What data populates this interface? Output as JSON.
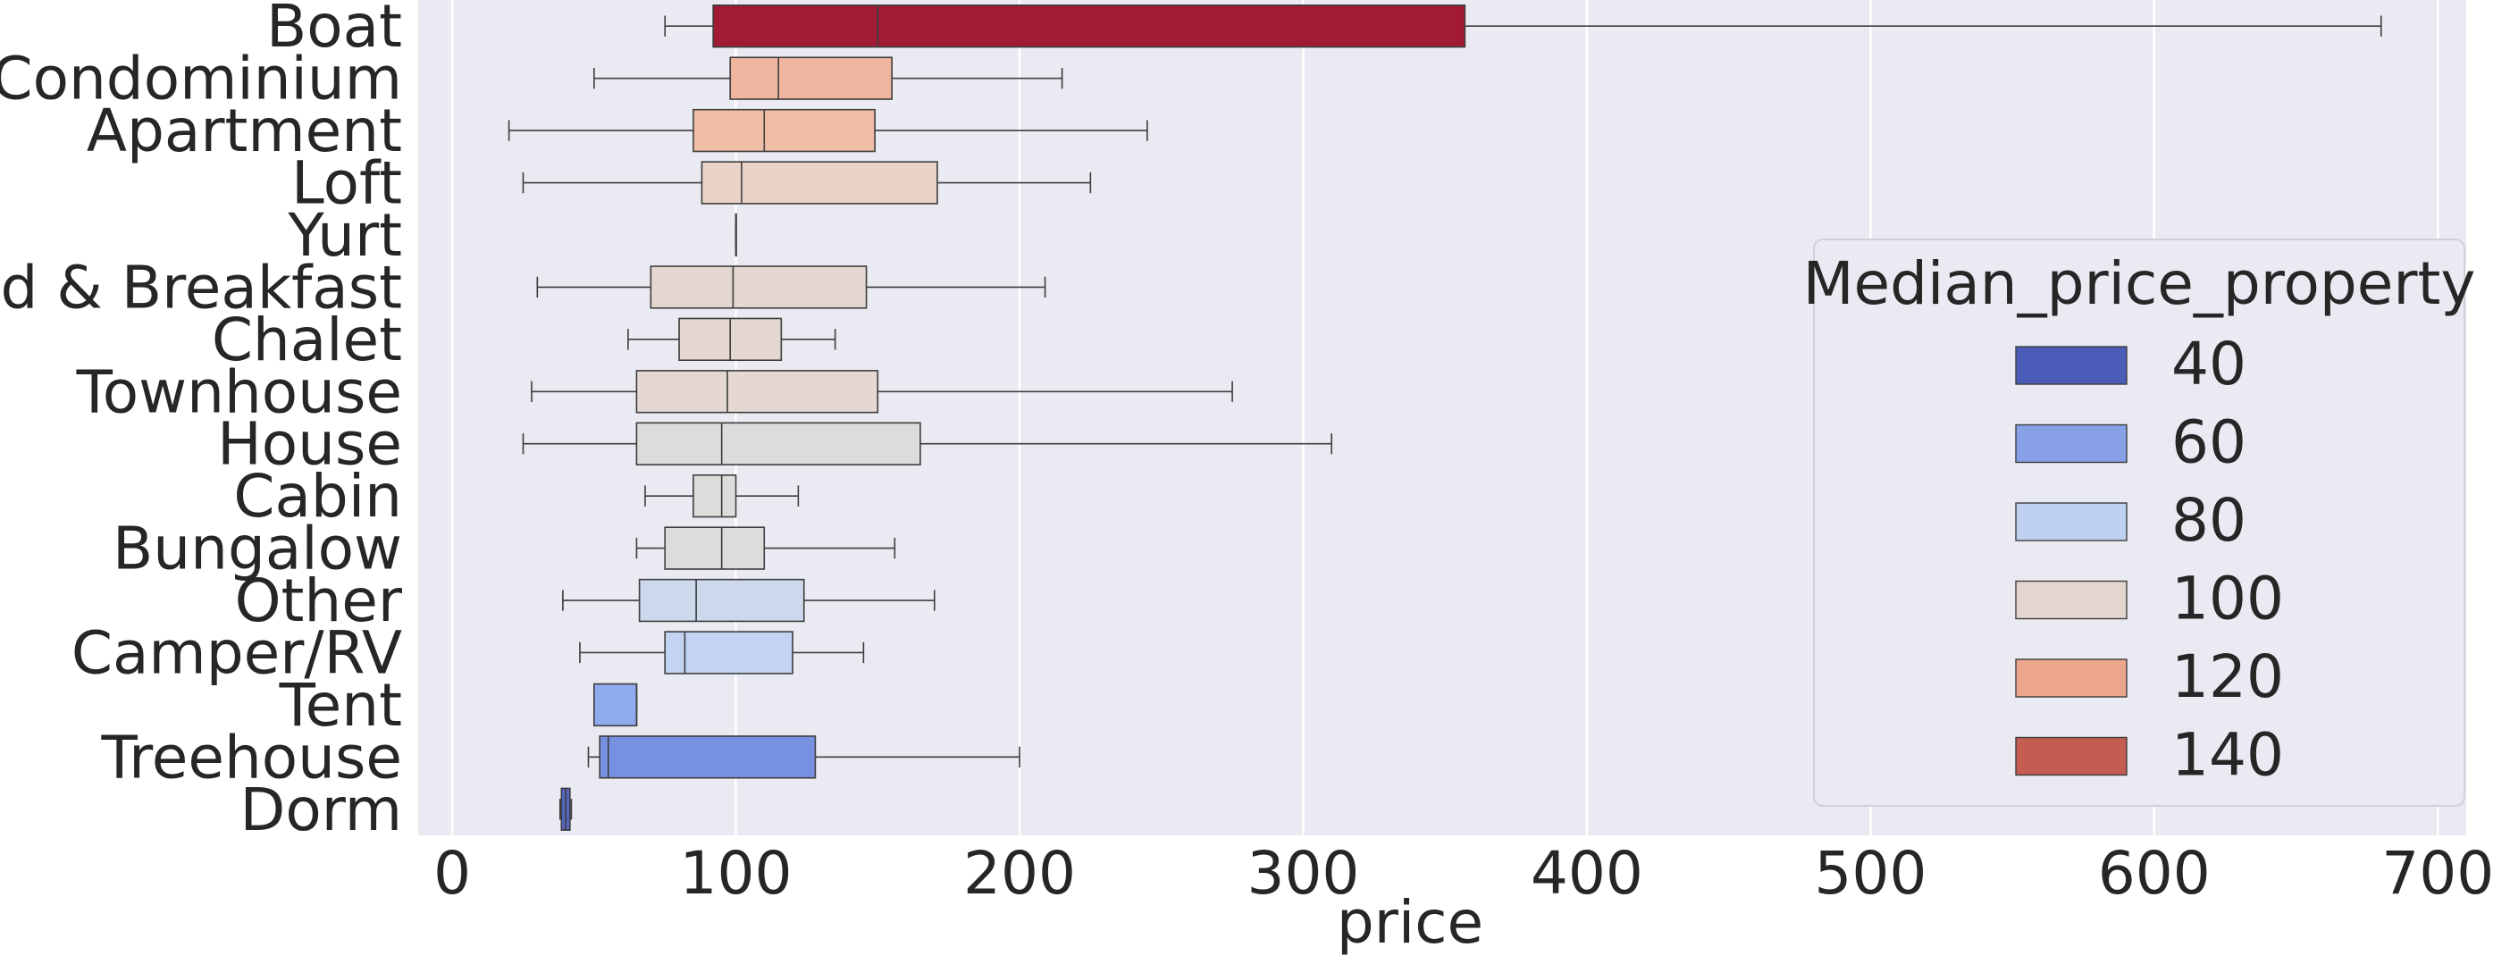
{
  "chart_data": {
    "type": "boxplot-horizontal",
    "xlabel": "price",
    "ylabel": "",
    "xlim": [
      -12,
      710
    ],
    "xticks": [
      0,
      100,
      200,
      300,
      400,
      500,
      600,
      700
    ],
    "xtick_labels": [
      "0",
      "100",
      "200",
      "300",
      "400",
      "500",
      "600",
      "700"
    ],
    "grid": true,
    "legend": {
      "title": "Median_price_property",
      "position": "right",
      "entries": [
        {
          "label": "40",
          "color": "#4a5bb8"
        },
        {
          "label": "60",
          "color": "#87a0e8"
        },
        {
          "label": "80",
          "color": "#bed1f0"
        },
        {
          "label": "100",
          "color": "#e3d6cf"
        },
        {
          "label": "120",
          "color": "#eba68c"
        },
        {
          "label": "140",
          "color": "#c45c52"
        }
      ]
    },
    "categories": [
      "Boat",
      "Condominium",
      "Apartment",
      "Loft",
      "Yurt",
      "Bed & Breakfast",
      "Chalet",
      "Townhouse",
      "House",
      "Cabin",
      "Bungalow",
      "Other",
      "Camper/RV",
      "Tent",
      "Treehouse",
      "Dorm"
    ],
    "boxes": [
      {
        "category": "Boat",
        "whislo": 75,
        "q1": 92,
        "med": 150,
        "q3": 357,
        "whishi": 680,
        "color": "#a11a36"
      },
      {
        "category": "Condominium",
        "whislo": 50,
        "q1": 98,
        "med": 115,
        "q3": 155,
        "whishi": 215,
        "color": "#f0b59e"
      },
      {
        "category": "Apartment",
        "whislo": 20,
        "q1": 85,
        "med": 110,
        "q3": 149,
        "whishi": 245,
        "color": "#f0bda6"
      },
      {
        "category": "Loft",
        "whislo": 25,
        "q1": 88,
        "med": 102,
        "q3": 171,
        "whishi": 225,
        "color": "#e9d3c8"
      },
      {
        "category": "Yurt",
        "whislo": 100,
        "q1": 100,
        "med": 100,
        "q3": 100,
        "whishi": 100,
        "color": "#e3d6cf"
      },
      {
        "category": "Bed & Breakfast",
        "whislo": 30,
        "q1": 70,
        "med": 99,
        "q3": 146,
        "whishi": 209,
        "color": "#e4d7d0"
      },
      {
        "category": "Chalet",
        "whislo": 62,
        "q1": 80,
        "med": 98,
        "q3": 116,
        "whishi": 135,
        "color": "#e4d7d0"
      },
      {
        "category": "Townhouse",
        "whislo": 28,
        "q1": 65,
        "med": 97,
        "q3": 150,
        "whishi": 275,
        "color": "#e5d8d2"
      },
      {
        "category": "House",
        "whislo": 25,
        "q1": 65,
        "med": 95,
        "q3": 165,
        "whishi": 310,
        "color": "#dedcdb"
      },
      {
        "category": "Cabin",
        "whislo": 68,
        "q1": 85,
        "med": 95,
        "q3": 100,
        "whishi": 122,
        "color": "#dddcdc"
      },
      {
        "category": "Bungalow",
        "whislo": 65,
        "q1": 75,
        "med": 95,
        "q3": 110,
        "whishi": 156,
        "color": "#dcdcdd"
      },
      {
        "category": "Other",
        "whislo": 39,
        "q1": 66,
        "med": 86,
        "q3": 124,
        "whishi": 170,
        "color": "#cdd8ec"
      },
      {
        "category": "Camper/RV",
        "whislo": 45,
        "q1": 75,
        "med": 82,
        "q3": 120,
        "whishi": 145,
        "color": "#c2d4f2"
      },
      {
        "category": "Tent",
        "whislo": 50,
        "q1": 50,
        "med": 65,
        "q3": 65,
        "whishi": 65,
        "color": "#90acef"
      },
      {
        "category": "Treehouse",
        "whislo": 48,
        "q1": 52,
        "med": 55,
        "q3": 128,
        "whishi": 200,
        "color": "#7890e0"
      },
      {
        "category": "Dorm",
        "whislo": 38,
        "q1": 38.5,
        "med": 40,
        "q3": 41.5,
        "whishi": 42,
        "color": "#5566c0"
      }
    ]
  }
}
